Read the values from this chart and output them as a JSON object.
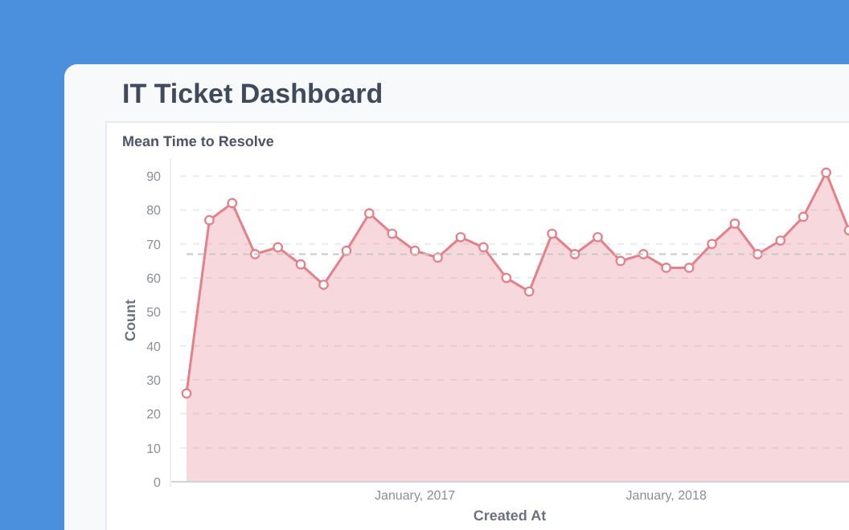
{
  "chart_data": {
    "type": "area",
    "title": "IT Ticket Dashboard",
    "subtitle": "Mean Time to Resolve",
    "xlabel": "Created At",
    "ylabel": "Count",
    "categories": [
      null,
      null,
      null,
      null,
      null,
      null,
      null,
      null,
      null,
      null,
      "January, 2017",
      null,
      null,
      null,
      null,
      null,
      null,
      null,
      null,
      null,
      null,
      "January, 2018",
      null,
      null,
      null,
      null,
      null,
      null,
      null,
      null
    ],
    "series": [
      {
        "color": "#e57f8a",
        "values": [
          26,
          77,
          82,
          67,
          69,
          64,
          58,
          68,
          79,
          73,
          68,
          66,
          72,
          69,
          60,
          56,
          73,
          67,
          72,
          65,
          67,
          63,
          63,
          70,
          76,
          67,
          71,
          78,
          91,
          74
        ]
      }
    ],
    "ylim": [
      0,
      95
    ],
    "yticks": [
      0,
      10,
      20,
      30,
      40,
      50,
      60,
      70,
      80,
      90
    ],
    "grid": "y",
    "marker": "circle",
    "line_style": "solid",
    "ref_lines": [
      {
        "axis": "y",
        "value": 67,
        "color": "#c8c8c8",
        "line_style": "dashed"
      }
    ]
  }
}
